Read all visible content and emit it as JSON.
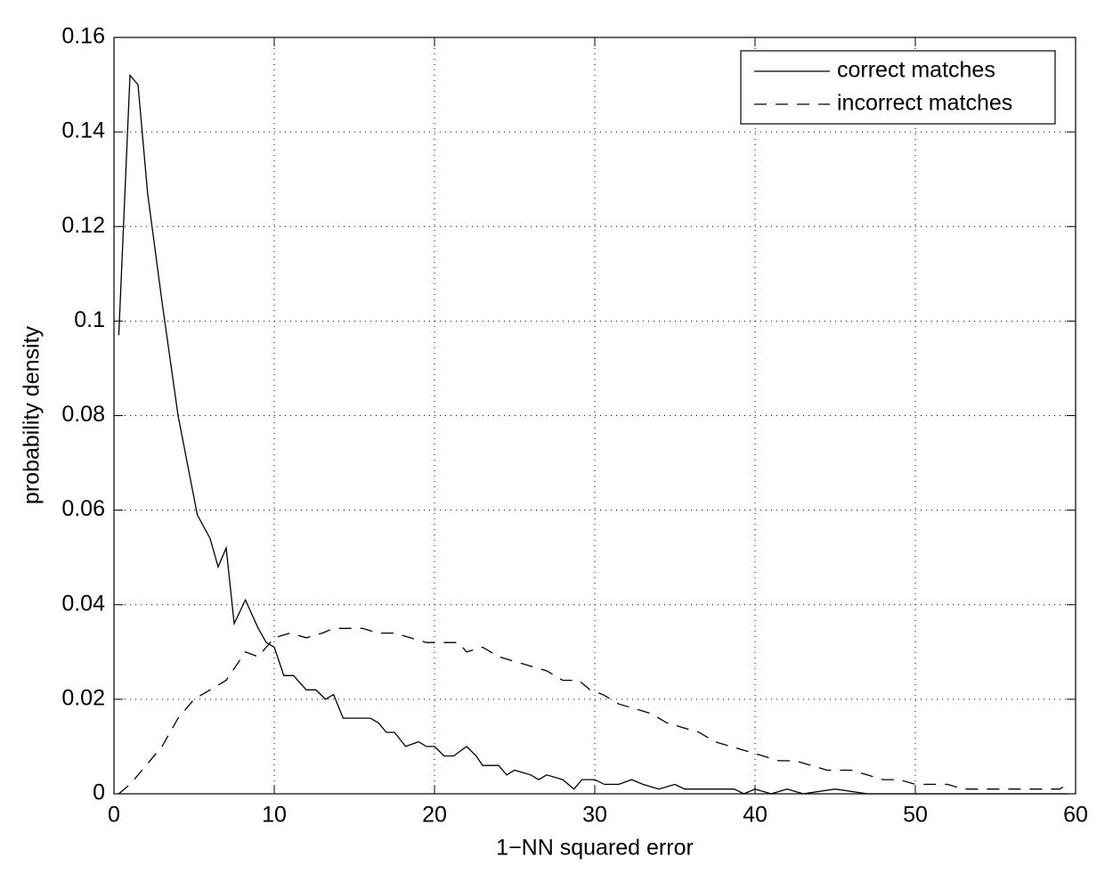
{
  "chart_data": {
    "type": "line",
    "xlabel": "1−NN squared error",
    "ylabel": "probability density",
    "xlim": [
      0,
      60
    ],
    "xticks": [
      0,
      10,
      20,
      30,
      40,
      50,
      60
    ],
    "ylim": [
      0,
      0.16
    ],
    "yticks": [
      0,
      0.02,
      0.04,
      0.06,
      0.08,
      0.1,
      0.12,
      0.14,
      0.16
    ],
    "grid": true,
    "legend": "upper right",
    "series": [
      {
        "name": "correct matches",
        "color": "#000000",
        "linestyle": "solid",
        "x": [
          0.3,
          1.0,
          1.5,
          2.1,
          3,
          4,
          5.2,
          6,
          6.5,
          7,
          7.5,
          8.2,
          9,
          9.5,
          10,
          10.6,
          11.2,
          12,
          12.6,
          13.2,
          13.7,
          14.3,
          15,
          16,
          16.5,
          17,
          17.5,
          18.2,
          19,
          19.5,
          20,
          20.6,
          21.2,
          22,
          22.6,
          23,
          24,
          24.5,
          25,
          26,
          26.5,
          27,
          28,
          28.7,
          29.2,
          30,
          30.6,
          31.5,
          32.3,
          33,
          34,
          35,
          35.6,
          36.2,
          37,
          38,
          38.7,
          39.3,
          40,
          41,
          42,
          43,
          45,
          47,
          50,
          55,
          59.5
        ],
        "values": [
          0.097,
          0.152,
          0.15,
          0.127,
          0.104,
          0.08,
          0.059,
          0.054,
          0.048,
          0.052,
          0.036,
          0.041,
          0.035,
          0.032,
          0.031,
          0.025,
          0.025,
          0.022,
          0.022,
          0.02,
          0.021,
          0.016,
          0.016,
          0.016,
          0.015,
          0.013,
          0.013,
          0.01,
          0.011,
          0.01,
          0.01,
          0.008,
          0.008,
          0.01,
          0.008,
          0.006,
          0.006,
          0.004,
          0.005,
          0.004,
          0.003,
          0.004,
          0.003,
          0.001,
          0.003,
          0.003,
          0.002,
          0.002,
          0.003,
          0.002,
          0.001,
          0.002,
          0.001,
          0.001,
          0.001,
          0.001,
          0.001,
          0,
          0.001,
          0,
          0.001,
          0,
          0.001,
          0,
          0,
          0,
          0
        ]
      },
      {
        "name": "incorrect matches",
        "color": "#000000",
        "linestyle": "dashed",
        "x": [
          0.3,
          1,
          2,
          3,
          4,
          5,
          6,
          7,
          8.2,
          9,
          9.5,
          10,
          11,
          12,
          13,
          13.7,
          14.5,
          15.5,
          16.5,
          17.5,
          18.5,
          19.5,
          20.5,
          21.5,
          22,
          23,
          24,
          25,
          26,
          27,
          28,
          29,
          29.7,
          30.5,
          31.5,
          32.5,
          33.5,
          34.5,
          35.5,
          36.5,
          37.5,
          38.5,
          39.5,
          40.5,
          41.5,
          42.5,
          43.5,
          44.5,
          46,
          47,
          48,
          49,
          50,
          51,
          52,
          53,
          54,
          55,
          56,
          57,
          58,
          59,
          59.5
        ],
        "values": [
          0,
          0.002,
          0.006,
          0.01,
          0.016,
          0.02,
          0.022,
          0.024,
          0.03,
          0.029,
          0.031,
          0.033,
          0.034,
          0.033,
          0.034,
          0.035,
          0.035,
          0.035,
          0.034,
          0.034,
          0.033,
          0.032,
          0.032,
          0.032,
          0.03,
          0.031,
          0.029,
          0.028,
          0.027,
          0.026,
          0.024,
          0.024,
          0.022,
          0.021,
          0.019,
          0.018,
          0.017,
          0.015,
          0.014,
          0.013,
          0.011,
          0.01,
          0.009,
          0.008,
          0.007,
          0.007,
          0.006,
          0.005,
          0.005,
          0.004,
          0.003,
          0.003,
          0.002,
          0.002,
          0.002,
          0.001,
          0.001,
          0.001,
          0.001,
          0.001,
          0.001,
          0.001,
          0.002
        ]
      }
    ]
  }
}
